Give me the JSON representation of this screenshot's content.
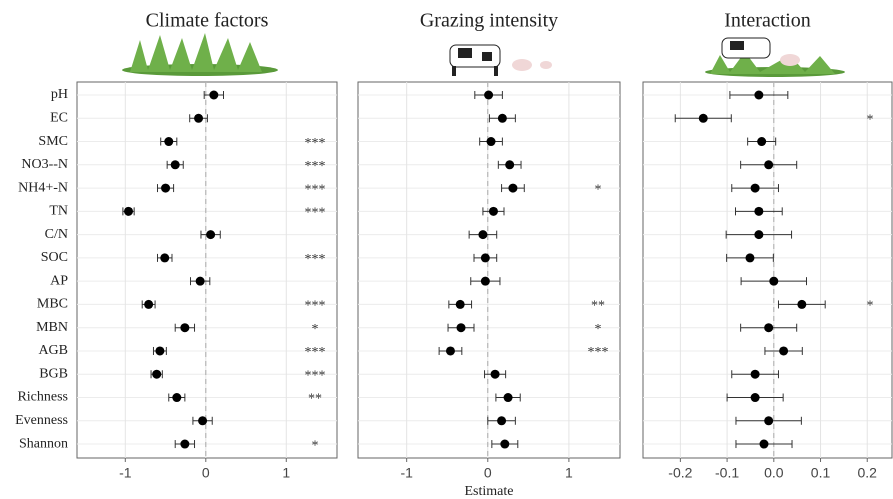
{
  "chart_data": [
    {
      "type": "forest",
      "title": "Climate factors",
      "categories": [
        "pH",
        "EC",
        "SMC",
        "NO3--N",
        "NH4+-N",
        "TN",
        "C/N",
        "SOC",
        "AP",
        "MBC",
        "MBN",
        "AGB",
        "BGB",
        "Richness",
        "Evenness",
        "Shannon"
      ],
      "values": [
        0.1,
        -0.09,
        -0.46,
        -0.38,
        -0.5,
        -0.96,
        0.06,
        -0.51,
        -0.07,
        -0.71,
        -0.26,
        -0.57,
        -0.61,
        -0.36,
        -0.04,
        -0.26
      ],
      "errors": [
        0.12,
        0.11,
        0.1,
        0.1,
        0.1,
        0.07,
        0.12,
        0.09,
        0.12,
        0.08,
        0.12,
        0.08,
        0.07,
        0.1,
        0.12,
        0.12
      ],
      "significance": [
        null,
        null,
        "***",
        "***",
        "***",
        "***",
        null,
        "***",
        null,
        "***",
        "*",
        "***",
        "***",
        "**",
        null,
        "*"
      ],
      "xlim": [
        -1.6,
        1.63
      ],
      "xticks": [
        -1,
        0,
        1
      ],
      "ref_line": 0,
      "grid": true,
      "color": "#000000"
    },
    {
      "type": "forest",
      "title": "Grazing intensity",
      "xlabel": "Estimate",
      "values": [
        0.01,
        0.18,
        0.04,
        0.27,
        0.31,
        0.07,
        -0.06,
        -0.03,
        -0.03,
        -0.34,
        -0.33,
        -0.46,
        0.09,
        0.25,
        0.17,
        0.21
      ],
      "errors": [
        0.17,
        0.16,
        0.14,
        0.14,
        0.14,
        0.13,
        0.17,
        0.14,
        0.18,
        0.14,
        0.16,
        0.14,
        0.13,
        0.15,
        0.17,
        0.16
      ],
      "significance": [
        null,
        null,
        null,
        null,
        "*",
        null,
        null,
        null,
        null,
        "**",
        "*",
        "***",
        null,
        null,
        null,
        null
      ],
      "xlim": [
        -1.6,
        1.63
      ],
      "xticks": [
        -1,
        0,
        1
      ],
      "ref_line": 0,
      "grid": true,
      "color": "#000000"
    },
    {
      "type": "forest",
      "title": "Interaction",
      "values": [
        -0.032,
        -0.151,
        -0.026,
        -0.011,
        -0.04,
        -0.032,
        -0.032,
        -0.051,
        0.0,
        0.06,
        -0.011,
        0.021,
        -0.04,
        -0.04,
        -0.011,
        -0.021
      ],
      "errors": [
        0.062,
        0.06,
        0.03,
        0.06,
        0.05,
        0.05,
        0.07,
        0.05,
        0.07,
        0.05,
        0.06,
        0.04,
        0.05,
        0.06,
        0.07,
        0.06
      ],
      "significance": [
        null,
        "*",
        null,
        null,
        null,
        null,
        null,
        null,
        null,
        "*",
        null,
        null,
        null,
        null,
        null,
        null
      ],
      "xlim": [
        -0.28,
        0.253
      ],
      "xticks": [
        -0.2,
        -0.1,
        {
          "value": 0,
          "label": "0.0"
        },
        0.1,
        0.2
      ],
      "ref_line": 0,
      "grid": true,
      "color": "#000000"
    }
  ]
}
